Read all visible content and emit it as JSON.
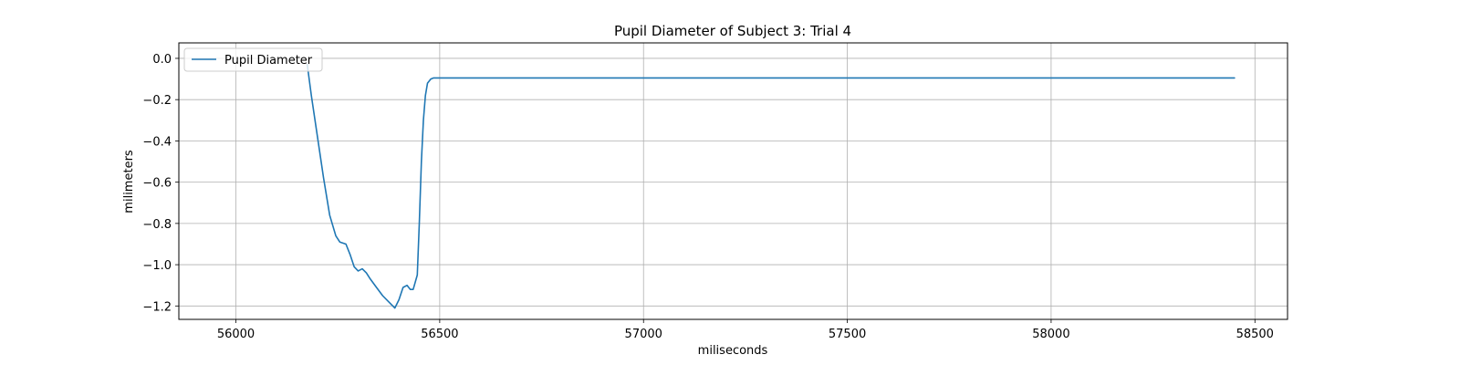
{
  "chart_data": {
    "type": "line",
    "title": "Pupil Diameter of Subject 3: Trial 4",
    "xlabel": "miliseconds",
    "ylabel": "milimeters",
    "xlim": [
      55860,
      58580
    ],
    "ylim": [
      -1.265,
      0.075
    ],
    "xticks": [
      56000,
      56500,
      57000,
      57500,
      58000,
      58500
    ],
    "xtick_labels": [
      "56000",
      "56500",
      "57000",
      "57500",
      "58000",
      "58500"
    ],
    "yticks": [
      0.0,
      -0.2,
      -0.4,
      -0.6,
      -0.8,
      -1.0,
      -1.2
    ],
    "ytick_labels": [
      "0.0",
      "−0.2",
      "−0.4",
      "−0.6",
      "−0.8",
      "−1.0",
      "−1.2"
    ],
    "grid": true,
    "legend_position": "upper-left",
    "series": [
      {
        "name": "Pupil Diameter",
        "color": "#1f77b4",
        "x": [
          56175,
          56185,
          56200,
          56215,
          56230,
          56245,
          56255,
          56270,
          56280,
          56290,
          56300,
          56310,
          56320,
          56330,
          56345,
          56360,
          56375,
          56390,
          56400,
          56410,
          56420,
          56428,
          56435,
          56445,
          56450,
          56455,
          56460,
          56465,
          56470,
          56478,
          56485,
          56495,
          56520,
          57000,
          57500,
          58000,
          58450
        ],
        "y": [
          -0.03,
          -0.18,
          -0.38,
          -0.58,
          -0.76,
          -0.86,
          -0.89,
          -0.9,
          -0.95,
          -1.01,
          -1.03,
          -1.02,
          -1.04,
          -1.07,
          -1.11,
          -1.15,
          -1.18,
          -1.21,
          -1.17,
          -1.11,
          -1.1,
          -1.12,
          -1.12,
          -1.05,
          -0.8,
          -0.5,
          -0.3,
          -0.18,
          -0.12,
          -0.1,
          -0.095,
          -0.095,
          -0.095,
          -0.095,
          -0.095,
          -0.095,
          -0.095
        ]
      }
    ]
  }
}
